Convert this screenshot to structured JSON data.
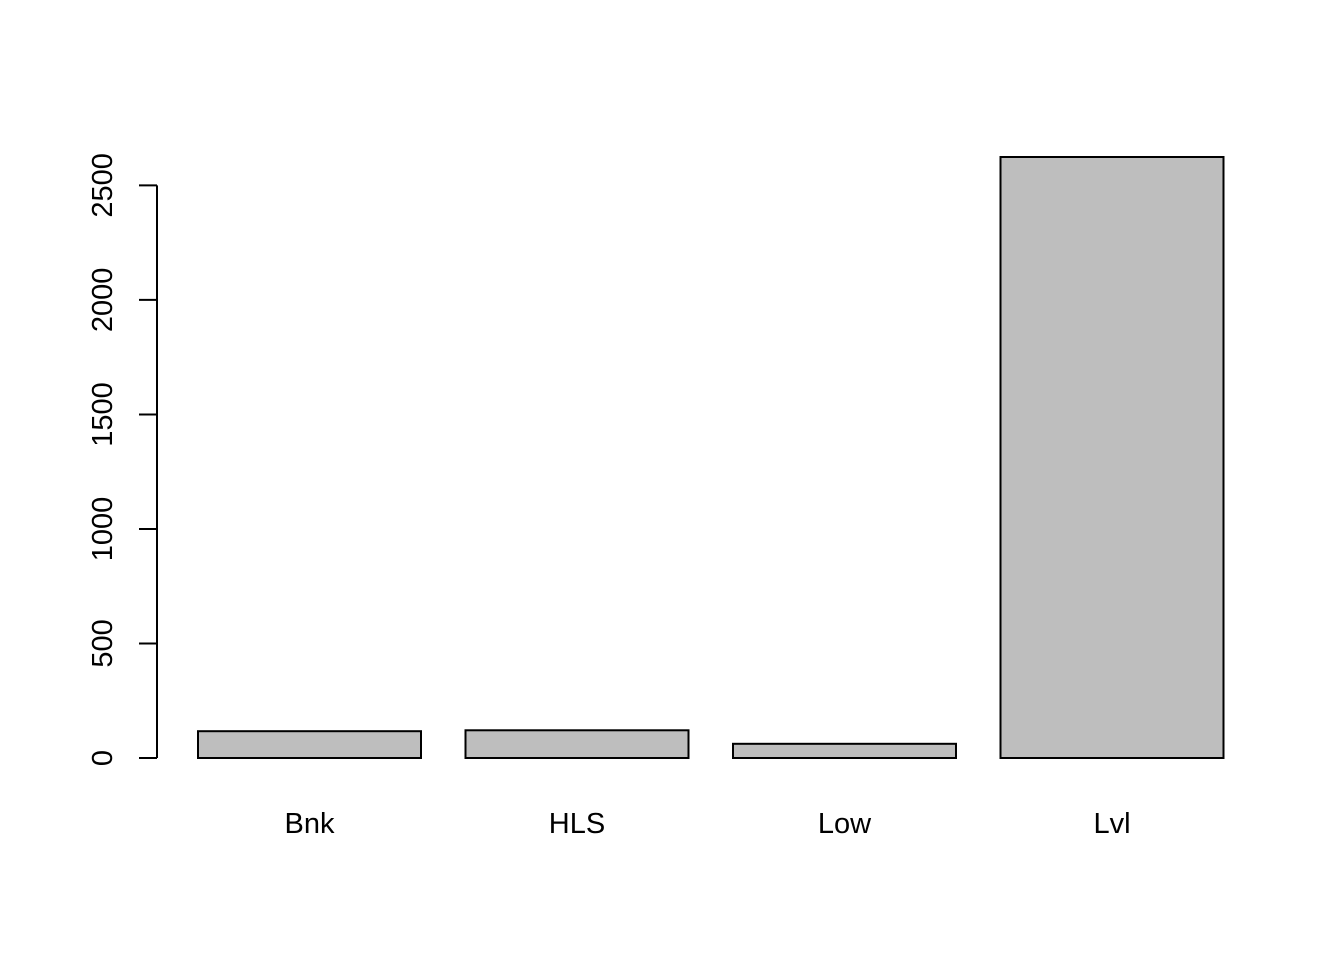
{
  "chart_data": {
    "type": "bar",
    "title": "",
    "xlabel": "",
    "ylabel": "",
    "categories": [
      "Bnk",
      "HLS",
      "Low",
      "Lvl"
    ],
    "values": [
      117,
      121,
      62,
      2624
    ],
    "ylim": [
      0,
      2624
    ],
    "yticks": [
      0,
      500,
      1000,
      1500,
      2000,
      2500
    ],
    "grid": false,
    "legend": "none",
    "bar_color": "#bebebe",
    "bar_border_color": "#000000"
  }
}
